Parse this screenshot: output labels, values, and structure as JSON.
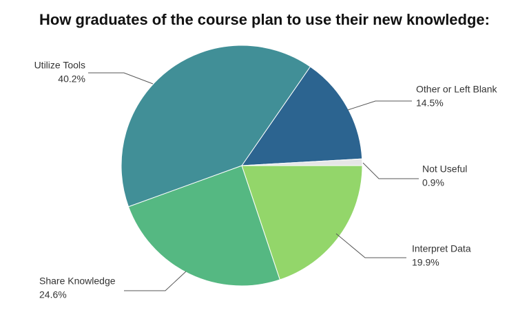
{
  "chart_data": {
    "type": "pie",
    "title": "How graduates of the course plan to use their new knowledge:",
    "categories": [
      "Other or Left Blank",
      "Not Useful",
      "Interpret Data",
      "Share Knowledge",
      "Utilize Tools"
    ],
    "values": [
      14.5,
      0.9,
      19.9,
      24.6,
      40.2
    ],
    "value_labels": [
      "14.5%",
      "0.9%",
      "19.9%",
      "24.6%",
      "40.2%"
    ],
    "colors": [
      "#2c6490",
      "#e6e6e6",
      "#93d66a",
      "#55b882",
      "#418f97"
    ]
  }
}
